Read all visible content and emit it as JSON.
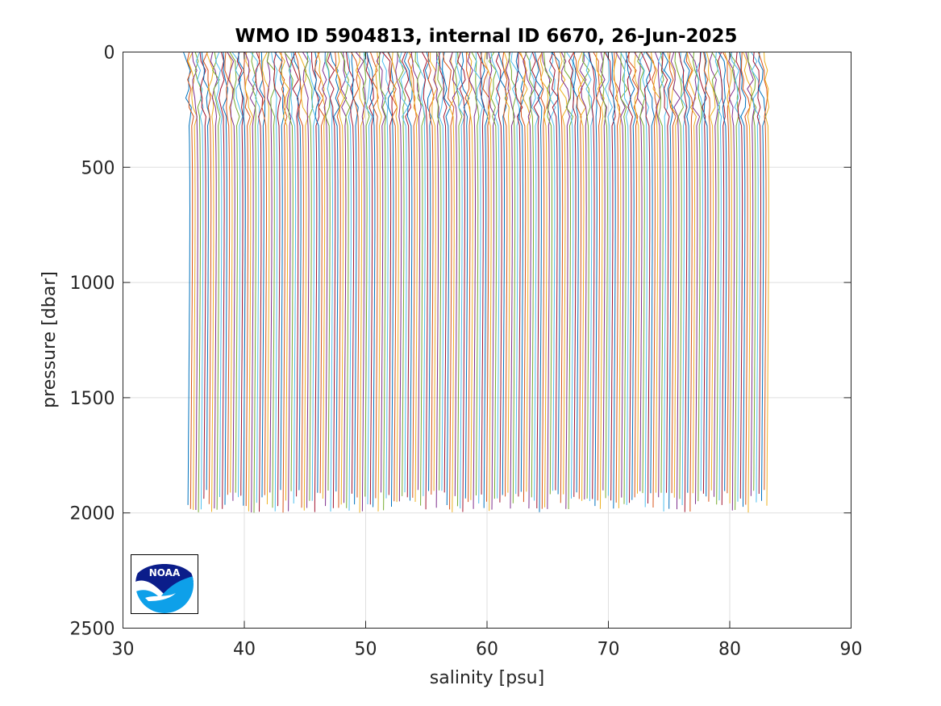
{
  "chart_data": {
    "type": "line",
    "title": "WMO ID 5904813, internal ID 6670, 26-Jun-2025",
    "xlabel": "salinity [psu]",
    "ylabel": "pressure [dbar]",
    "xlim": [
      30,
      90
    ],
    "ylim": [
      0,
      2500
    ],
    "y_reversed": true,
    "xticks": [
      30,
      40,
      50,
      60,
      70,
      80,
      90
    ],
    "yticks": [
      0,
      500,
      1000,
      1500,
      2000,
      2500
    ],
    "grid": true,
    "series_description": "waterfall of successive float profiles, each profile offset in salinity",
    "profile_count": 220,
    "first_profile_surface_salinity": 35.1,
    "last_profile_surface_salinity": 82.8,
    "profile_max_pressure": [
      1900,
      2000
    ],
    "line_colors": [
      "#0072bd",
      "#d95319",
      "#edb120",
      "#7e2f8e",
      "#77ac30",
      "#4dbeee",
      "#a2142f"
    ],
    "logo": {
      "name": "noaa-logo",
      "text": "NOAA"
    }
  }
}
